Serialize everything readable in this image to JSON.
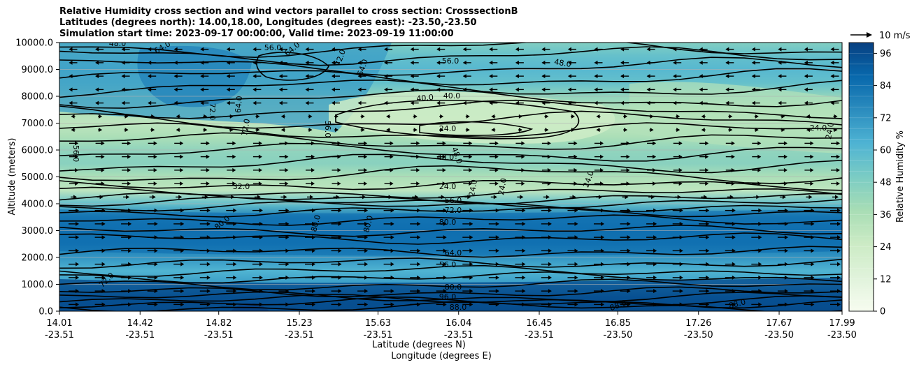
{
  "chart_data": {
    "type": "contour",
    "title_lines": [
      "Relative Humidity cross section and wind vectors parallel to cross section: CrosssectionB",
      "Latitudes (degrees north): 14.00,18.00, Longitudes (degrees east): -23.50,-23.50",
      "Simulation start time: 2023-09-17 00:00:00, Valid time: 2023-09-19 11:00:00"
    ],
    "ylabel": "Altitude (meters)",
    "xlabel_lat": "Latitude (degrees N)",
    "xlabel_lon": "Longitude (degrees E)",
    "y_ticks": [
      "0.0",
      "1000.0",
      "2000.0",
      "3000.0",
      "4000.0",
      "5000.0",
      "6000.0",
      "7000.0",
      "8000.0",
      "9000.0",
      "10000.0"
    ],
    "ylim": [
      0,
      10000
    ],
    "x_ticks_lat": [
      "14.01",
      "14.42",
      "14.82",
      "15.23",
      "15.63",
      "16.04",
      "16.45",
      "16.85",
      "17.26",
      "17.67",
      "17.99"
    ],
    "x_ticks_lon": [
      "-23.51",
      "-23.51",
      "-23.51",
      "-23.51",
      "-23.51",
      "-23.51",
      "-23.51",
      "-23.50",
      "-23.50",
      "-23.50",
      "-23.50"
    ],
    "xlim": [
      14.01,
      17.99
    ],
    "colorbar": {
      "label": "Relative Humidity %",
      "range": [
        0,
        100
      ],
      "ticks": [
        "0",
        "12",
        "24",
        "36",
        "48",
        "60",
        "72",
        "84",
        "96"
      ],
      "colormap": "GnBu",
      "colors": [
        "#f7fcf0",
        "#e0f3db",
        "#ccebc5",
        "#a8ddb5",
        "#7bccc4",
        "#4eb3d3",
        "#2b8cbe",
        "#0868ac",
        "#084081"
      ]
    },
    "wind_key": "10 m/s",
    "grid": "horizontal",
    "contour_labels": [
      "24.0",
      "32.0",
      "40.0",
      "48.0",
      "56.0",
      "64.0",
      "72.0",
      "80.0",
      "88.0",
      "96.0"
    ],
    "rh_profile": [
      {
        "alt": 0,
        "rh": 97
      },
      {
        "alt": 500,
        "rh": 92
      },
      {
        "alt": 1000,
        "rh": 70
      },
      {
        "alt": 1500,
        "rh": 62
      },
      {
        "alt": 2000,
        "rh": 72
      },
      {
        "alt": 2500,
        "rh": 82
      },
      {
        "alt": 3000,
        "rh": 84
      },
      {
        "alt": 3500,
        "rh": 80
      },
      {
        "alt": 4000,
        "rh": 56
      },
      {
        "alt": 4500,
        "rh": 30
      },
      {
        "alt": 5000,
        "rh": 36
      },
      {
        "alt": 5500,
        "rh": 46
      },
      {
        "alt": 6000,
        "rh": 44
      },
      {
        "alt": 6500,
        "rh": 36
      },
      {
        "alt": 7000,
        "rh": 30
      },
      {
        "alt": 7500,
        "rh": 34
      },
      {
        "alt": 8000,
        "rh": 44
      },
      {
        "alt": 8500,
        "rh": 56
      },
      {
        "alt": 9000,
        "rh": 60
      },
      {
        "alt": 9500,
        "rh": 56
      },
      {
        "alt": 10000,
        "rh": 48
      }
    ]
  }
}
